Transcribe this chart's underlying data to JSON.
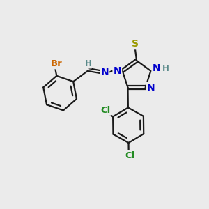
{
  "bg_color": "#ebebeb",
  "bond_color": "#1a1a1a",
  "S_color": "#999900",
  "N_color": "#0000cc",
  "Br_color": "#cc6600",
  "Cl_color": "#228B22",
  "H_color": "#5a8a8a",
  "line_width": 1.6,
  "figsize": [
    3.0,
    3.0
  ],
  "dpi": 100,
  "xlim": [
    0,
    10
  ],
  "ylim": [
    0,
    10
  ]
}
